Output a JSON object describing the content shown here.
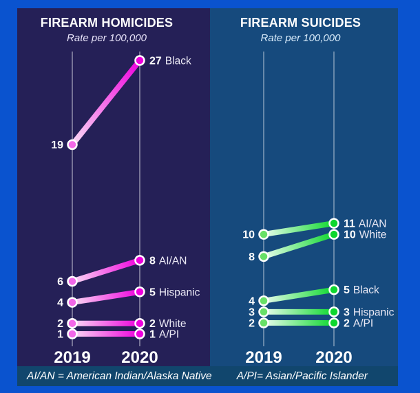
{
  "page": {
    "background": "#0a53cf",
    "footer_background": "#11466d"
  },
  "chart_data": [
    {
      "type": "line",
      "variant": "slopegraph",
      "title": "FIREARM HOMICIDES",
      "subtitle": "Rate per 100,000",
      "categories": [
        "2019",
        "2020"
      ],
      "series": [
        {
          "name": "Black",
          "values": [
            19,
            27
          ]
        },
        {
          "name": "AI/AN",
          "values": [
            6,
            8
          ]
        },
        {
          "name": "Hispanic",
          "values": [
            4,
            5
          ]
        },
        {
          "name": "White",
          "values": [
            2,
            2
          ]
        },
        {
          "name": "A/PI",
          "values": [
            1,
            1
          ]
        }
      ],
      "ylim": [
        1,
        27
      ],
      "grid": "two vertical year axes only",
      "legend": "direct labels at right endpoints",
      "colors": {
        "panel": "#252057",
        "dot_2019": "#f268e8",
        "dot_2020": "#ee00dd",
        "line_start": "#fadcf5",
        "line_end": "#ee00dd",
        "axis": "rgba(255,255,255,0.38)"
      }
    },
    {
      "type": "line",
      "variant": "slopegraph",
      "title": "FIREARM SUICIDES",
      "subtitle": "Rate per 100,000",
      "categories": [
        "2019",
        "2020"
      ],
      "series": [
        {
          "name": "AI/AN",
          "values": [
            10,
            11
          ]
        },
        {
          "name": "White",
          "values": [
            8,
            10
          ]
        },
        {
          "name": "Black",
          "values": [
            4,
            5
          ]
        },
        {
          "name": "Hispanic",
          "values": [
            3,
            3
          ]
        },
        {
          "name": "A/PI",
          "values": [
            2,
            2
          ]
        }
      ],
      "ylim": [
        2,
        11
      ],
      "grid": "two vertical year axes only",
      "legend": "direct labels at right endpoints",
      "colors": {
        "panel": "#164a7d",
        "dot_2019": "#67e067",
        "dot_2020": "#0dd72e",
        "line_start": "#eafdee",
        "line_end": "#0dd72e",
        "axis": "rgba(255,255,255,0.35)"
      }
    }
  ],
  "footer": {
    "notes": [
      "AI/AN = American Indian/Alaska Native",
      "A/PI= Asian/Pacific Islander"
    ]
  }
}
